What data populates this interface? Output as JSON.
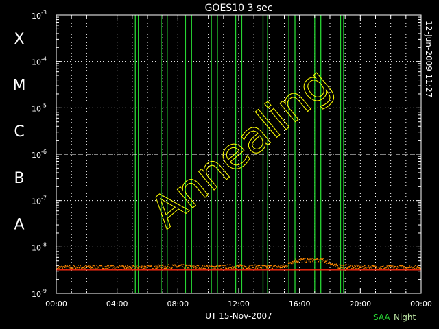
{
  "chart_data": {
    "type": "line",
    "title": "GOES10  3 sec",
    "xlabel": "UT 15-Nov-2007",
    "x_ticks": [
      "00:00",
      "04:00",
      "08:00",
      "12:00",
      "16:00",
      "20:00",
      "00:00"
    ],
    "x_range_hours": [
      0,
      24
    ],
    "y_scale": "log",
    "ylim": [
      1e-09,
      0.001
    ],
    "y_ticks": [
      {
        "value": 1e-09,
        "base": "10",
        "exp": "-9"
      },
      {
        "value": 1e-08,
        "base": "10",
        "exp": "-8"
      },
      {
        "value": 1e-07,
        "base": "10",
        "exp": "-7"
      },
      {
        "value": 1e-06,
        "base": "10",
        "exp": "-6"
      },
      {
        "value": 1e-05,
        "base": "10",
        "exp": "-5"
      },
      {
        "value": 0.0001,
        "base": "10",
        "exp": "-4"
      },
      {
        "value": 0.001,
        "base": "10",
        "exp": "-3"
      }
    ],
    "flare_classes": [
      {
        "label": "A",
        "value": 1e-08
      },
      {
        "label": "B",
        "value": 1e-07
      },
      {
        "label": "C",
        "value": 1e-06
      },
      {
        "label": "M",
        "value": 1e-05
      },
      {
        "label": "X",
        "value": 0.0001
      }
    ],
    "grid": true,
    "c_class_dashed_line": 1e-06,
    "series": [
      {
        "color": "#ff8800",
        "style": "points",
        "baseline_flux": 3.2e-09,
        "noise_high_flux": 4.3e-09,
        "x": [
          0.0,
          2.0,
          4.0,
          6.0,
          8.0,
          10.0,
          12.0,
          14.0,
          15.1,
          15.4,
          15.8,
          17.5,
          17.9,
          18.3,
          20.0,
          22.0,
          24.0
        ],
        "y": [
          3.5e-09,
          3.6e-09,
          3.5e-09,
          3.6e-09,
          3.7e-09,
          3.6e-09,
          3.7e-09,
          3.6e-09,
          3.7e-09,
          4.6e-09,
          5e-09,
          5e-09,
          4.7e-09,
          3.8e-09,
          3.6e-09,
          3.5e-09,
          3.6e-09
        ]
      },
      {
        "color": "#ff2a10",
        "style": "line",
        "x": [
          0,
          24
        ],
        "y": [
          3.2e-09,
          3.2e-09
        ]
      }
    ],
    "saa_lines_hours": [
      5.2,
      5.4,
      6.9,
      7.3,
      8.5,
      8.9,
      10.2,
      10.6,
      11.8,
      12.2,
      13.6,
      13.9,
      15.3,
      15.7,
      17.0,
      17.4,
      18.7,
      18.9
    ],
    "annotation": "Annealing",
    "annotation_color": "#ffff00",
    "timestamp": "12-Jun-2009 11:27",
    "legend": [
      "SAA",
      "Night"
    ],
    "legend_colors": {
      "SAA": "#27d633",
      "Night": "#bfe9a6"
    },
    "colors": {
      "background": "#000000",
      "axes": "#ffffff",
      "saa": "#27d633",
      "data": "#ff8800",
      "baseline": "#ff2a10"
    }
  }
}
